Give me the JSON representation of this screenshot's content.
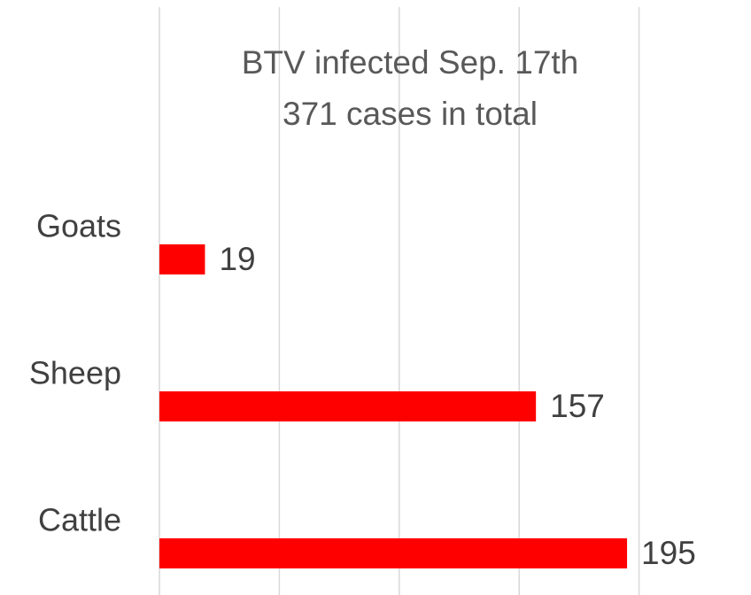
{
  "chart_data": {
    "type": "bar",
    "orientation": "horizontal",
    "title": "BTV infected Sep. 17th",
    "subtitle": "371 cases in total",
    "categories": [
      "Goats",
      "Sheep",
      "Cattle"
    ],
    "values": [
      19,
      157,
      195
    ],
    "color": "#ff0000",
    "xlim": [
      0,
      200
    ],
    "xticks": [
      0,
      50,
      100,
      150,
      200
    ],
    "grid": true
  }
}
